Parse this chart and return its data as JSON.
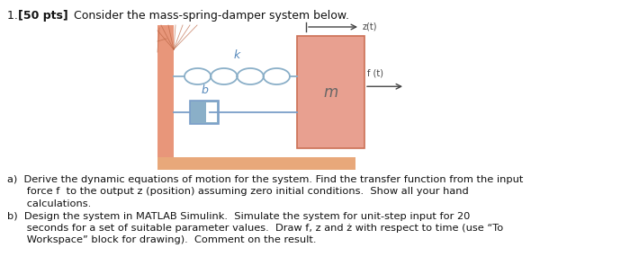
{
  "wall_color": "#E8967A",
  "wall_edge_color": "#CC7055",
  "mass_color": "#E8A090",
  "mass_edge_color": "#CC7055",
  "floor_color": "#E8A87A",
  "damper_fill": "#8AAFC8",
  "damper_edge": "#7A9EC8",
  "spring_color": "#8AAFC8",
  "arrow_color": "#444444",
  "label_color": "#5588BB",
  "text_color": "#111111",
  "title_prefix": "1. ",
  "title_bold": "[50 pts]",
  "title_rest": " Consider the mass-spring-damper system below.",
  "mass_label": "m",
  "spring_label": "k",
  "damper_label": "b",
  "zt_label": "z(t)",
  "ft_label": "f (t)",
  "text_a_line1": "a)  Derive the dynamic equations of motion for the system. Find the transfer function from the input",
  "text_a_line2": "      force f  to the output z (position) assuming zero initial conditions.  Show all your hand",
  "text_a_line3": "      calculations.",
  "text_b_line1": "b)  Design the system in MATLAB Simulink.  Simulate the system for unit-step input for 20",
  "text_b_line2": "      seconds for a set of suitable parameter values.  Draw f, z and ż with respect to time (use “To",
  "text_b_line3": "      Workspace” block for drawing).  Comment on the result."
}
